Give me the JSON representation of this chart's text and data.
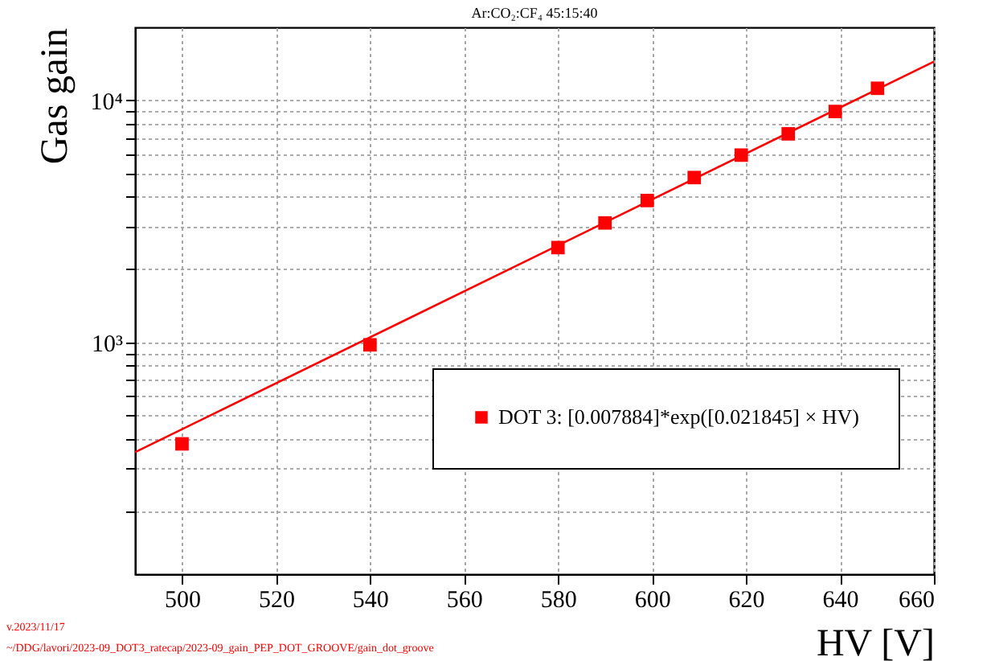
{
  "chart_data": {
    "type": "scatter",
    "title": "Ar:CO₂:CF₄ 45:15:40",
    "xlabel": "HV [V]",
    "ylabel": "Gas gain",
    "annotations": [
      "v.2023/11/17",
      "~/DDG/lavori/2023-09_DOT3_ratecap/2023-09_gain_PEP_DOT_GROOVE/gain_dot_groove"
    ],
    "series": [
      {
        "name": "DOT 3: [0.007884]*exp([0.021845] × HV)",
        "color": "#ff0000",
        "marker": "square",
        "x": [
          500,
          540,
          580,
          590,
          599,
          609,
          619,
          629,
          639,
          648
        ],
        "values": [
          380,
          975,
          2460,
          3110,
          3850,
          4790,
          5930,
          7260,
          8980,
          11200
        ]
      },
      {
        "type": "line",
        "color": "#ff0000",
        "line_style": "solid",
        "x": [
          490,
          660
        ],
        "values": [
          351,
          14430
        ]
      }
    ],
    "xlim": [
      490,
      660
    ],
    "xticks": [
      500,
      520,
      540,
      560,
      580,
      600,
      620,
      640,
      660
    ],
    "log": "y",
    "ylim": [
      110,
      20000
    ],
    "yticks": [
      {
        "value": 200,
        "label": null
      },
      {
        "value": 300,
        "label": null
      },
      {
        "value": 400,
        "label": null
      },
      {
        "value": 500,
        "label": null
      },
      {
        "value": 600,
        "label": null
      },
      {
        "value": 700,
        "label": null
      },
      {
        "value": 800,
        "label": null
      },
      {
        "value": 900,
        "label": null
      },
      {
        "value": 1000,
        "label": "10³"
      },
      {
        "value": 2000,
        "label": null
      },
      {
        "value": 3000,
        "label": null
      },
      {
        "value": 4000,
        "label": null
      },
      {
        "value": 5000,
        "label": null
      },
      {
        "value": 6000,
        "label": null
      },
      {
        "value": 7000,
        "label": null
      },
      {
        "value": 8000,
        "label": null
      },
      {
        "value": 9000,
        "label": null
      },
      {
        "value": 10000,
        "label": "10⁴"
      }
    ],
    "grid": true,
    "legend": "right"
  }
}
